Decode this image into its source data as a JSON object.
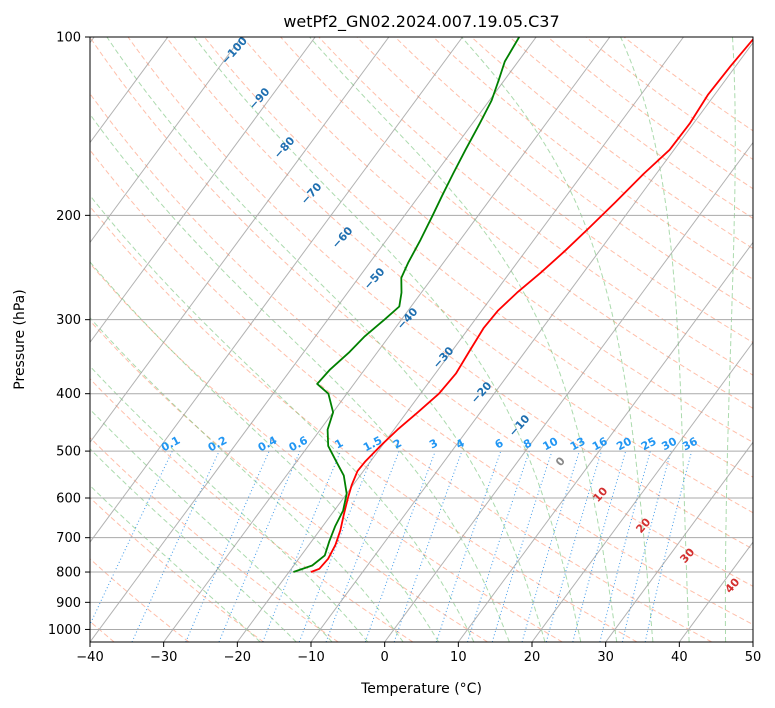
{
  "chart_data": {
    "type": "line",
    "subtype": "skew-t log-p diagram",
    "title": "wetPf2_GN02.2024.007.19.05.C37",
    "xlabel": "Temperature (°C)",
    "ylabel": "Pressure (hPa)",
    "xlim": [
      -40,
      50
    ],
    "ylim": [
      1050,
      100
    ],
    "y_scale": "log",
    "x_ticks": [
      -40,
      -30,
      -20,
      -10,
      0,
      10,
      20,
      30,
      40,
      50
    ],
    "y_ticks": [
      1000,
      900,
      800,
      700,
      600,
      500,
      400,
      300,
      200,
      100
    ],
    "grid": true,
    "series": [
      {
        "color": "#ff0000",
        "points": [
          {
            "p": 800,
            "t": -17.0
          },
          {
            "p": 790,
            "t": -16.2
          },
          {
            "p": 760,
            "t": -16.0
          },
          {
            "p": 720,
            "t": -16.4
          },
          {
            "p": 680,
            "t": -17.2
          },
          {
            "p": 640,
            "t": -18.3
          },
          {
            "p": 600,
            "t": -19.4
          },
          {
            "p": 570,
            "t": -20.2
          },
          {
            "p": 540,
            "t": -20.8
          },
          {
            "p": 520,
            "t": -20.7
          },
          {
            "p": 490,
            "t": -20.2
          },
          {
            "p": 460,
            "t": -19.5
          },
          {
            "p": 430,
            "t": -18.5
          },
          {
            "p": 400,
            "t": -17.5
          },
          {
            "p": 370,
            "t": -17.2
          },
          {
            "p": 340,
            "t": -17.6
          },
          {
            "p": 310,
            "t": -18.0
          },
          {
            "p": 290,
            "t": -17.8
          },
          {
            "p": 270,
            "t": -17.0
          },
          {
            "p": 250,
            "t": -15.8
          },
          {
            "p": 230,
            "t": -14.7
          },
          {
            "p": 210,
            "t": -13.7
          },
          {
            "p": 190,
            "t": -12.7
          },
          {
            "p": 170,
            "t": -11.7
          },
          {
            "p": 155,
            "t": -10.6
          },
          {
            "p": 140,
            "t": -10.5
          },
          {
            "p": 125,
            "t": -10.9
          },
          {
            "p": 112,
            "t": -10.7
          },
          {
            "p": 100,
            "t": -10.3
          }
        ]
      },
      {
        "color": "#008000",
        "points": [
          {
            "p": 800,
            "t": -19.4
          },
          {
            "p": 780,
            "t": -17.5
          },
          {
            "p": 750,
            "t": -16.8
          },
          {
            "p": 710,
            "t": -17.6
          },
          {
            "p": 670,
            "t": -18.3
          },
          {
            "p": 630,
            "t": -18.8
          },
          {
            "p": 590,
            "t": -20.0
          },
          {
            "p": 550,
            "t": -22.2
          },
          {
            "p": 520,
            "t": -24.7
          },
          {
            "p": 490,
            "t": -27.3
          },
          {
            "p": 460,
            "t": -29.0
          },
          {
            "p": 430,
            "t": -30.0
          },
          {
            "p": 400,
            "t": -32.5
          },
          {
            "p": 385,
            "t": -35.0
          },
          {
            "p": 365,
            "t": -34.7
          },
          {
            "p": 340,
            "t": -33.8
          },
          {
            "p": 320,
            "t": -33.3
          },
          {
            "p": 300,
            "t": -32.3
          },
          {
            "p": 285,
            "t": -31.6
          },
          {
            "p": 270,
            "t": -32.7
          },
          {
            "p": 255,
            "t": -34.2
          },
          {
            "p": 240,
            "t": -34.8
          },
          {
            "p": 220,
            "t": -35.4
          },
          {
            "p": 200,
            "t": -36.2
          },
          {
            "p": 185,
            "t": -36.9
          },
          {
            "p": 170,
            "t": -37.6
          },
          {
            "p": 155,
            "t": -38.3
          },
          {
            "p": 140,
            "t": -39.0
          },
          {
            "p": 128,
            "t": -39.7
          },
          {
            "p": 118,
            "t": -40.8
          },
          {
            "p": 110,
            "t": -41.8
          },
          {
            "p": 100,
            "t": -42.3
          }
        ]
      }
    ],
    "dry_adiabat_labels": [
      "-100",
      "-90",
      "-80",
      "-70",
      "-60",
      "-50",
      "-40",
      "-30",
      "-20",
      "-10"
    ],
    "moist_adiabat_labels": [
      "0",
      "10",
      "20",
      "30",
      "40"
    ],
    "mixing_ratio_labels": [
      "0.1",
      "0.2",
      "0.4",
      "0.6",
      "1",
      "1.5",
      "2",
      "3",
      "4",
      "6",
      "8",
      "10",
      "13",
      "16",
      "20",
      "25",
      "30",
      "36"
    ],
    "mixing_ratio_values": [
      0.1,
      0.2,
      0.4,
      0.6,
      1,
      1.5,
      2,
      3,
      4,
      6,
      8,
      10,
      13,
      16,
      20,
      25,
      30,
      36
    ],
    "colors": {
      "dry_adiabats": "#ff8a65",
      "moist_adiabats": "#66bb6a",
      "mixing_ratio": "#1e88e5",
      "isotherms": "#999999",
      "dry_label": "#1f6fb0",
      "moist_label": "#d32f2f",
      "mixing_label": "#2196f3"
    }
  }
}
